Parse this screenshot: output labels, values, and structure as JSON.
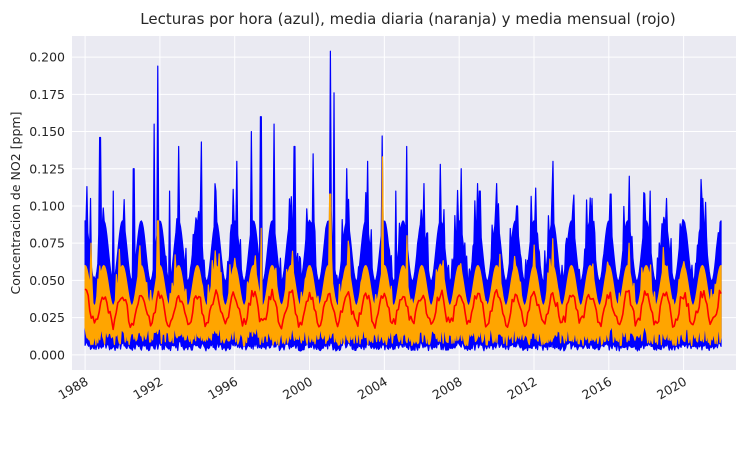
{
  "chart_data": {
    "type": "line",
    "title": "Lecturas por hora (azul), media diaria (naranja) y media mensual (rojo)",
    "xlabel": "",
    "ylabel": "Concentracion de NO2 [ppm]",
    "xlim": [
      1987.3,
      2022.8
    ],
    "ylim": [
      -0.0102,
      0.2142
    ],
    "x_ticks": [
      1988,
      1992,
      1996,
      2000,
      2004,
      2008,
      2012,
      2016,
      2020
    ],
    "x_tick_labels": [
      "1988",
      "1992",
      "1996",
      "2000",
      "2004",
      "2008",
      "2012",
      "2016",
      "2020"
    ],
    "y_ticks": [
      0.0,
      0.025,
      0.05,
      0.075,
      0.1,
      0.125,
      0.15,
      0.175,
      0.2
    ],
    "y_tick_labels": [
      "0.000",
      "0.025",
      "0.050",
      "0.075",
      "0.100",
      "0.125",
      "0.150",
      "0.175",
      "0.200"
    ],
    "grid": true,
    "background": "#eaeaf2",
    "legend": "none",
    "series": [
      {
        "role": "hourly",
        "color": "#0000ff",
        "x_start": 1988.0,
        "x_end": 2022.0,
        "typical_min": 0.005,
        "typical_max": 0.09,
        "peaks": [
          {
            "x": 1988.3,
            "y": 0.105
          },
          {
            "x": 1988.8,
            "y": 0.146
          },
          {
            "x": 1989.5,
            "y": 0.11
          },
          {
            "x": 1990.6,
            "y": 0.125
          },
          {
            "x": 1991.7,
            "y": 0.155
          },
          {
            "x": 1991.9,
            "y": 0.194
          },
          {
            "x": 1992.5,
            "y": 0.11
          },
          {
            "x": 1993.0,
            "y": 0.14
          },
          {
            "x": 1994.2,
            "y": 0.143
          },
          {
            "x": 1995.0,
            "y": 0.11
          },
          {
            "x": 1996.1,
            "y": 0.13
          },
          {
            "x": 1996.9,
            "y": 0.15
          },
          {
            "x": 1997.4,
            "y": 0.16
          },
          {
            "x": 1998.1,
            "y": 0.155
          },
          {
            "x": 1999.2,
            "y": 0.14
          },
          {
            "x": 2000.2,
            "y": 0.135
          },
          {
            "x": 2001.1,
            "y": 0.204
          },
          {
            "x": 2001.3,
            "y": 0.176
          },
          {
            "x": 2002.0,
            "y": 0.125
          },
          {
            "x": 2003.1,
            "y": 0.13
          },
          {
            "x": 2003.9,
            "y": 0.147
          },
          {
            "x": 2004.6,
            "y": 0.11
          },
          {
            "x": 2005.2,
            "y": 0.14
          },
          {
            "x": 2006.1,
            "y": 0.115
          },
          {
            "x": 2007.0,
            "y": 0.128
          },
          {
            "x": 2008.1,
            "y": 0.125
          },
          {
            "x": 2009.1,
            "y": 0.11
          },
          {
            "x": 2010.0,
            "y": 0.115
          },
          {
            "x": 2011.1,
            "y": 0.1
          },
          {
            "x": 2012.1,
            "y": 0.112
          },
          {
            "x": 2013.0,
            "y": 0.13
          },
          {
            "x": 2014.1,
            "y": 0.1
          },
          {
            "x": 2015.1,
            "y": 0.105
          },
          {
            "x": 2016.1,
            "y": 0.108
          },
          {
            "x": 2017.1,
            "y": 0.12
          },
          {
            "x": 2018.2,
            "y": 0.11
          },
          {
            "x": 2019.1,
            "y": 0.105
          },
          {
            "x": 2020.1,
            "y": 0.085
          },
          {
            "x": 2021.0,
            "y": 0.105
          },
          {
            "x": 2021.9,
            "y": 0.077
          }
        ]
      },
      {
        "role": "daily_mean",
        "color": "#ffa500",
        "x_start": 1988.0,
        "x_end": 2022.0,
        "typical_min": 0.012,
        "typical_max": 0.06,
        "peaks": [
          {
            "x": 1988.3,
            "y": 0.075
          },
          {
            "x": 1991.9,
            "y": 0.09
          },
          {
            "x": 1997.4,
            "y": 0.085
          },
          {
            "x": 2001.1,
            "y": 0.108
          },
          {
            "x": 2003.9,
            "y": 0.133
          },
          {
            "x": 2005.2,
            "y": 0.08
          },
          {
            "x": 2013.0,
            "y": 0.078
          },
          {
            "x": 2017.1,
            "y": 0.075
          }
        ]
      },
      {
        "role": "monthly_mean",
        "color": "#ff0000",
        "x_start": 1988.0,
        "x_end": 2022.0,
        "mean": 0.031,
        "seasonal_amplitude": 0.01,
        "range": [
          0.015,
          0.052
        ]
      }
    ]
  }
}
